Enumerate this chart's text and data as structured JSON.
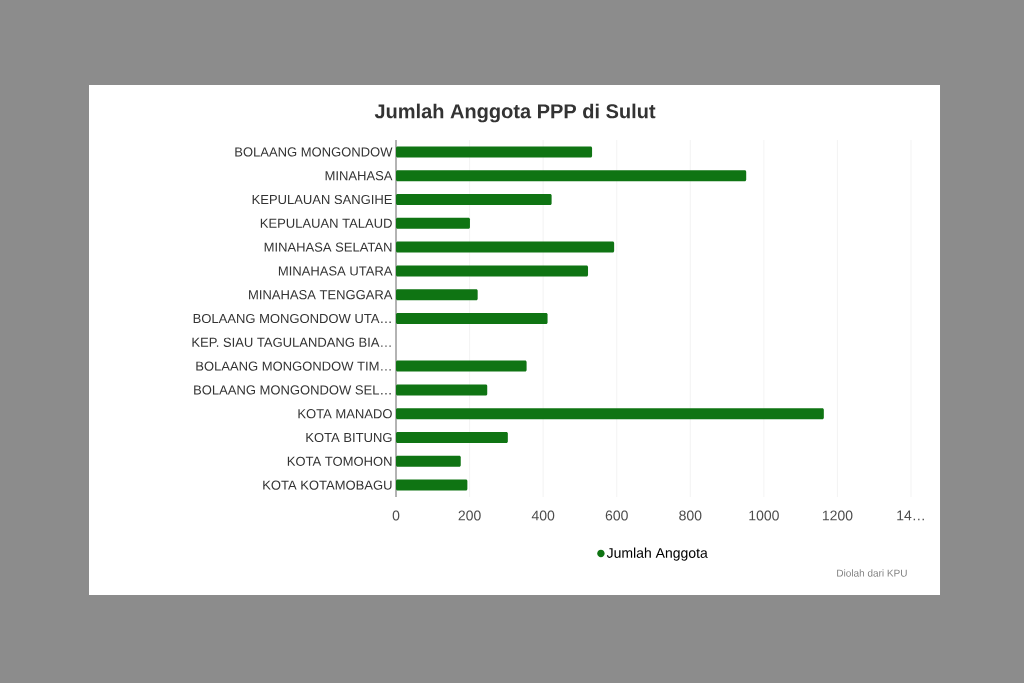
{
  "chart_data": {
    "type": "bar",
    "orientation": "horizontal",
    "title": "Jumlah Anggota PPP di Sulut",
    "categories": [
      "BOLAANG MONGONDOW",
      "MINAHASA",
      "KEPULAUAN SANGIHE",
      "KEPULAUAN TALAUD",
      "MINAHASA SELATAN",
      "MINAHASA UTARA",
      "MINAHASA TENGGARA",
      "BOLAANG MONGONDOW UTA…",
      "KEP. SIAU TAGULANDANG BIA…",
      "BOLAANG MONGONDOW TIM…",
      "BOLAANG MONGONDOW SEL…",
      "KOTA MANADO",
      "KOTA BITUNG",
      "KOTA TOMOHON",
      "KOTA KOTAMOBAGU"
    ],
    "series": [
      {
        "name": "Jumlah Anggota",
        "color": "#0f7413",
        "values": [
          533,
          952,
          423,
          201,
          593,
          522,
          222,
          412,
          null,
          355,
          248,
          1163,
          304,
          176,
          194
        ]
      }
    ],
    "xlim": [
      0,
      1400
    ],
    "xticks": [
      0,
      200,
      400,
      600,
      800,
      1000,
      1200,
      {
        "value": 1400,
        "label": "14…"
      }
    ],
    "grid": "x",
    "legend": "bottom",
    "annotations": [
      "Diolah dari KPU"
    ]
  }
}
